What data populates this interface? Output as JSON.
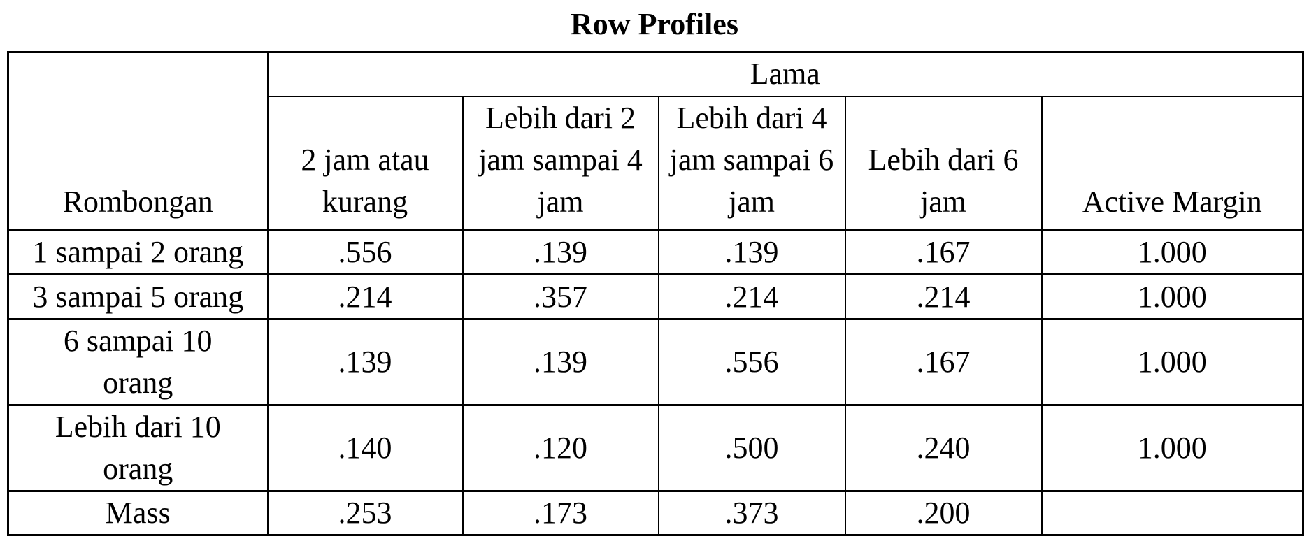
{
  "title": "Row Profiles",
  "table": {
    "corner_header": "Rombongan",
    "span_header": "Lama",
    "column_headers": [
      "2 jam atau kurang",
      "Lebih dari 2 jam sampai 4 jam",
      "Lebih dari 4 jam sampai 6 jam",
      "Lebih dari 6 jam",
      "Active Margin"
    ],
    "rows": [
      {
        "label": "1 sampai 2 orang",
        "values": [
          ".556",
          ".139",
          ".139",
          ".167",
          "1.000"
        ]
      },
      {
        "label": "3 sampai 5 orang",
        "values": [
          ".214",
          ".357",
          ".214",
          ".214",
          "1.000"
        ]
      },
      {
        "label": "6 sampai 10 orang",
        "values": [
          ".139",
          ".139",
          ".556",
          ".167",
          "1.000"
        ]
      },
      {
        "label": "Lebih dari 10 orang",
        "values": [
          ".140",
          ".120",
          ".500",
          ".240",
          "1.000"
        ]
      },
      {
        "label": "Mass",
        "values": [
          ".253",
          ".173",
          ".373",
          ".200",
          ""
        ]
      }
    ]
  },
  "chart_data": {
    "type": "table",
    "title": "Row Profiles",
    "row_variable": "Rombongan",
    "column_variable": "Lama",
    "columns": [
      "2 jam atau kurang",
      "Lebih dari 2 jam sampai 4 jam",
      "Lebih dari 4 jam sampai 6 jam",
      "Lebih dari 6 jam",
      "Active Margin"
    ],
    "rows": [
      {
        "category": "1 sampai 2 orang",
        "values": [
          0.556,
          0.139,
          0.139,
          0.167,
          1.0
        ]
      },
      {
        "category": "3 sampai 5 orang",
        "values": [
          0.214,
          0.357,
          0.214,
          0.214,
          1.0
        ]
      },
      {
        "category": "6 sampai 10 orang",
        "values": [
          0.139,
          0.139,
          0.556,
          0.167,
          1.0
        ]
      },
      {
        "category": "Lebih dari 10 orang",
        "values": [
          0.14,
          0.12,
          0.5,
          0.24,
          1.0
        ]
      },
      {
        "category": "Mass",
        "values": [
          0.253,
          0.173,
          0.373,
          0.2,
          null
        ]
      }
    ]
  },
  "colors": {
    "text": "#000000",
    "border": "#000000",
    "background": "#ffffff"
  }
}
